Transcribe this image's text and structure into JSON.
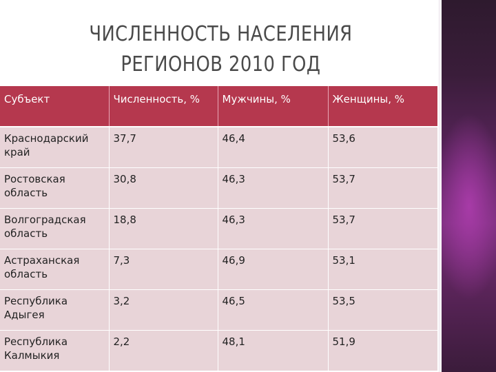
{
  "slide": {
    "title_line1": "ЧИСЛЕННОСТЬ НАСЕЛЕНИЯ",
    "title_line2": "РЕГИОНОВ 2010 ГОД"
  },
  "table": {
    "headers": [
      "Субъект",
      "Численность, %",
      "Мужчины, %",
      "Женщины, %"
    ],
    "rows": [
      [
        "Краснодарский край",
        "37,7",
        "46,4",
        "53,6"
      ],
      [
        "Ростовская область",
        "30,8",
        "46,3",
        "53,7"
      ],
      [
        "Волгоградская область",
        "18,8",
        "46,3",
        "53,7"
      ],
      [
        "Астраханская область",
        "7,3",
        "46,9",
        "53,1"
      ],
      [
        "Республика Адыгея",
        "3,2",
        "46,5",
        "53,5"
      ],
      [
        "Республика Калмыкия",
        "2,2",
        "48,1",
        "51,9"
      ]
    ]
  },
  "colors": {
    "header_bg": "#b5384e",
    "row_bg": "#e8d4d8",
    "side_panel": "#6a2a6c"
  }
}
